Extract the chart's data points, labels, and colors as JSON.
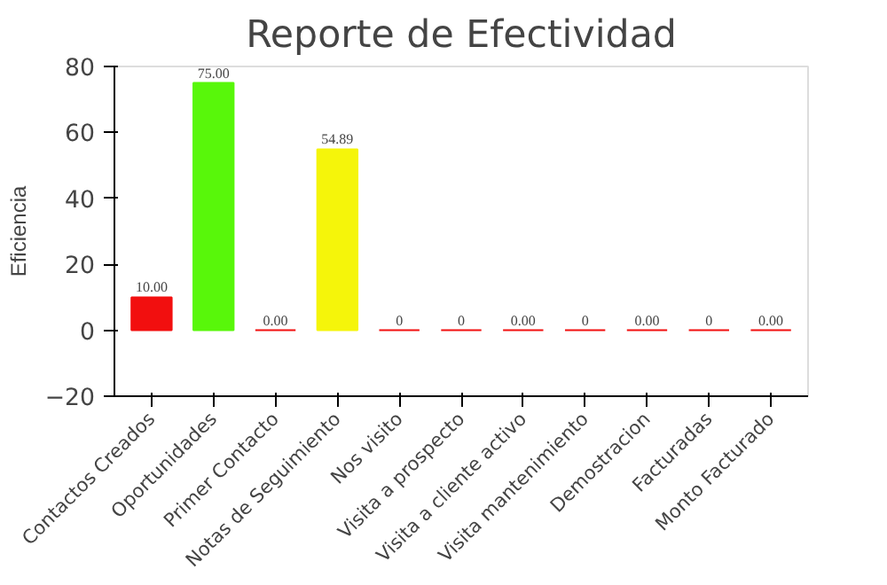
{
  "chart_data": {
    "type": "bar",
    "title": "Reporte de Efectividad",
    "ylabel": "Eficiencia",
    "categories": [
      "Contactos Creados",
      "Oportunidades",
      "Primer Contacto",
      "Notas de Seguimiento",
      "Nos visito",
      "Visita a prospecto",
      "Visita a cliente activo",
      "Visita mantenimiento",
      "Demostracion",
      "Facturadas",
      "Monto Facturado"
    ],
    "values": [
      10,
      75,
      0,
      54.89,
      0,
      0,
      0,
      0,
      0,
      0,
      0
    ],
    "colors": [
      "#f20f0f",
      "#58f70a",
      "#f20f0f",
      "#f5f50a",
      "#f20f0f",
      "#f20f0f",
      "#f20f0f",
      "#f20f0f",
      "#f20f0f",
      "#f20f0f",
      "#f20f0f"
    ],
    "value_labels": [
      "10.00",
      "75.00",
      "0.00",
      "54.89",
      "0",
      "0",
      "0.00",
      "0",
      "0.00",
      "0",
      "0.00"
    ],
    "ylim": [
      -20,
      80
    ],
    "yticks": [
      -20,
      0,
      20,
      40,
      60,
      80
    ],
    "grid": false
  }
}
